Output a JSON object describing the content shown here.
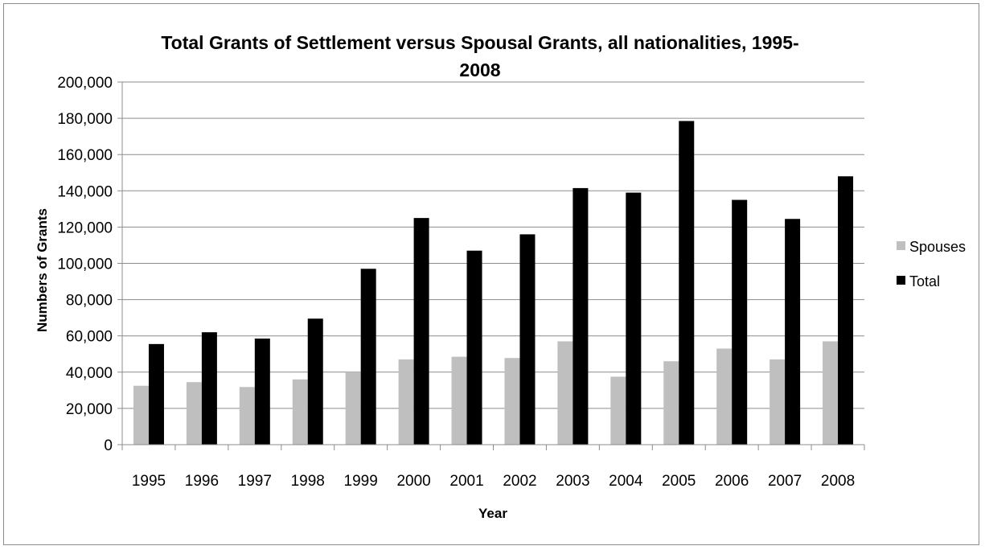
{
  "chart_data": {
    "type": "bar",
    "title_line1": "Total Grants of Settlement versus Spousal Grants, all nationalities, 1995-",
    "title_line2": "2008",
    "xlabel": "Year",
    "ylabel": "Numbers of Grants",
    "ylim": [
      0,
      200000
    ],
    "yticks": [
      0,
      20000,
      40000,
      60000,
      80000,
      100000,
      120000,
      140000,
      160000,
      180000,
      200000
    ],
    "ytick_labels": [
      "0",
      "20,000",
      "40,000",
      "60,000",
      "80,000",
      "100,000",
      "120,000",
      "140,000",
      "160,000",
      "180,000",
      "200,000"
    ],
    "grid": true,
    "legend_position": "right",
    "categories": [
      "1995",
      "1996",
      "1997",
      "1998",
      "1999",
      "2000",
      "2001",
      "2002",
      "2003",
      "2004",
      "2005",
      "2006",
      "2007",
      "2008"
    ],
    "series": [
      {
        "name": "Spouses",
        "color": "#bfbfbf",
        "values": [
          32500,
          34500,
          31800,
          36000,
          40000,
          47000,
          48500,
          47800,
          57000,
          37500,
          46000,
          53000,
          47000,
          57000
        ]
      },
      {
        "name": "Total",
        "color": "#000000",
        "values": [
          55500,
          62000,
          58500,
          69500,
          97000,
          125000,
          107000,
          116000,
          141500,
          139000,
          178500,
          135000,
          124500,
          148000
        ]
      }
    ]
  }
}
